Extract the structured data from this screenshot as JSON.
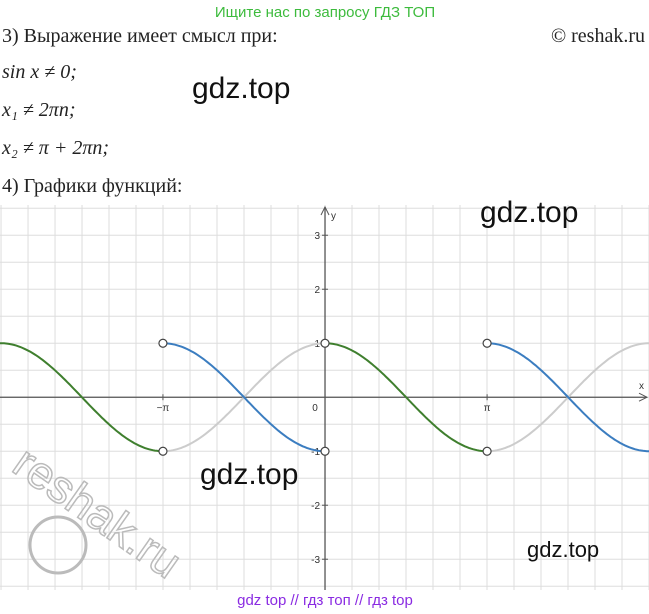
{
  "header": {
    "banner": "Ищите нас по запросу ГДЗ ТОП",
    "copyright": "© reshak.ru"
  },
  "lines": [
    "3) Выражение имеет смысл при:",
    "sin x ≠ 0;",
    "x₁ ≠ 2πn;",
    "x₂ ≠ π + 2πn;",
    "4) Графики функций:"
  ],
  "watermarks": [
    "gdz.top",
    "gdz.top",
    "gdz.top",
    "gdz.top"
  ],
  "stamp": "reshak.ru",
  "footer": "gdz top  //  гдз топ  //  гдз top",
  "graph": {
    "x_label": "x",
    "y_label": "y",
    "xlim": [
      -6.3,
      6.28
    ],
    "ylim": [
      -3.57,
      3.56
    ],
    "xticks": [
      {
        "value": -3.14159,
        "label": "−π"
      },
      0,
      {
        "value": 3.14159,
        "label": "π"
      }
    ],
    "yticks": [
      -3,
      -2,
      -1,
      1,
      2,
      3
    ]
  }
}
